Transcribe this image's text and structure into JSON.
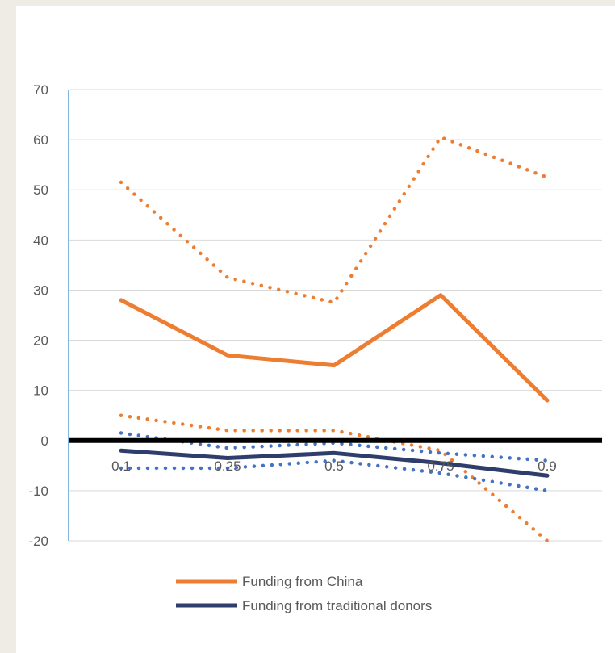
{
  "chart_data": {
    "type": "line",
    "title": "",
    "xlabel": "",
    "ylabel": "",
    "categories": [
      "0.1",
      "0.25",
      "0.5",
      "0.75",
      "0.9"
    ],
    "ylim": [
      -20,
      70
    ],
    "yticks": [
      70,
      60,
      50,
      40,
      30,
      20,
      10,
      0,
      -10,
      -20
    ],
    "grid": true,
    "legend_position": "bottom",
    "reference_line": {
      "y": 0,
      "color": "#000000"
    },
    "series": [
      {
        "name": "Funding from China",
        "role": "estimate",
        "color": "#ed7d31",
        "values": [
          28,
          17,
          15,
          29,
          8
        ]
      },
      {
        "role": "upper-bound",
        "color": "#ed7d31",
        "values": [
          51.5,
          32.5,
          27.5,
          60.5,
          52.5
        ]
      },
      {
        "role": "lower-bound",
        "color": "#ed7d31",
        "values": [
          5,
          2,
          2,
          -2,
          -20
        ]
      },
      {
        "name": "Funding from traditional donors",
        "role": "estimate",
        "color": "#2e3d6b",
        "values": [
          -2,
          -3.5,
          -2.5,
          -4.5,
          -7
        ]
      },
      {
        "role": "upper-bound",
        "color": "#4472c4",
        "values": [
          1.5,
          -1.5,
          -0.5,
          -2.5,
          -4
        ]
      },
      {
        "role": "lower-bound",
        "color": "#4472c4",
        "values": [
          -5.5,
          -5.5,
          -4,
          -6.5,
          -10
        ]
      }
    ]
  }
}
